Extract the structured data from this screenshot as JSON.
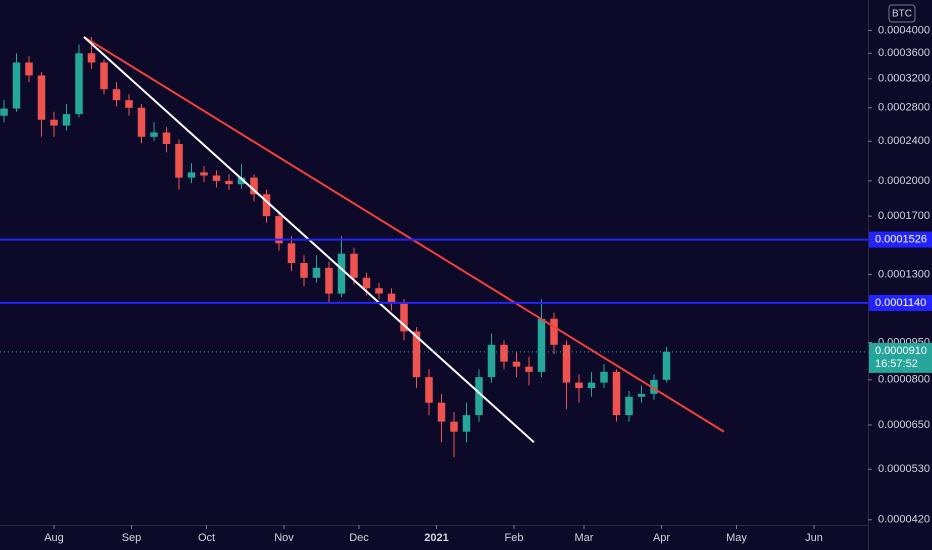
{
  "chart_data": {
    "type": "candlestick",
    "currency": "BTC",
    "log": true,
    "up_color": "#26a69a",
    "down_color": "#ef5350",
    "xlim": [
      -21.6,
      324.4
    ],
    "xticks": [
      {
        "value": 0,
        "label": "Aug"
      },
      {
        "value": 31,
        "label": "Sep"
      },
      {
        "value": 61,
        "label": "Oct"
      },
      {
        "value": 92,
        "label": "Nov"
      },
      {
        "value": 122,
        "label": "Dec"
      },
      {
        "value": 153,
        "label": "2021"
      },
      {
        "value": 184,
        "label": "Feb"
      },
      {
        "value": 212,
        "label": "Mar"
      },
      {
        "value": 243,
        "label": "Apr"
      },
      {
        "value": 273,
        "label": "May"
      },
      {
        "value": 304,
        "label": "Jun"
      }
    ],
    "ylim": [
      4.1e-05,
      0.00046
    ],
    "yticks": [
      {
        "value": 0.0004,
        "label": "0.0004000"
      },
      {
        "value": 0.00036,
        "label": "0.0003600"
      },
      {
        "value": 0.00032,
        "label": "0.0003200"
      },
      {
        "value": 0.00028,
        "label": "0.0002800"
      },
      {
        "value": 0.00024,
        "label": "0.0002400"
      },
      {
        "value": 0.0002,
        "label": "0.0002000"
      },
      {
        "value": 0.00017,
        "label": "0.0001700"
      },
      {
        "value": 0.00013,
        "label": "0.0001300"
      },
      {
        "value": 9.5e-05,
        "label": "0.0000950"
      },
      {
        "value": 8e-05,
        "label": "0.0000800"
      },
      {
        "value": 6.5e-05,
        "label": "0.0000650"
      },
      {
        "value": 5.3e-05,
        "label": "0.0000530"
      },
      {
        "value": 4.2e-05,
        "label": "0.0000420"
      }
    ],
    "x": [
      -20,
      -15,
      -10,
      -5,
      0,
      5,
      10,
      15,
      20,
      25,
      30,
      35,
      40,
      45,
      50,
      55,
      60,
      65,
      70,
      75,
      80,
      85,
      90,
      95,
      100,
      105,
      110,
      115,
      120,
      125,
      130,
      135,
      140,
      145,
      150,
      155,
      160,
      165,
      170,
      175,
      180,
      185,
      190,
      195,
      200,
      205,
      210,
      215,
      220,
      225,
      230,
      235,
      240,
      245
    ],
    "open": [
      0.00027,
      0.000279,
      0.000345,
      0.000325,
      0.000265,
      0.000258,
      0.000272,
      0.00036,
      0.000345,
      0.000305,
      0.00029,
      0.00028,
      0.000245,
      0.00025,
      0.000237,
      0.000203,
      0.000208,
      0.000205,
      0.0002,
      0.000197,
      0.000203,
      0.000188,
      0.00017,
      0.00015,
      0.000137,
      0.000128,
      0.000134,
      0.000119,
      0.000143,
      0.000128,
      0.000122,
      0.000119,
      0.000114,
      0.0001,
      8.1e-05,
      7.2e-05,
      6.6e-05,
      6.3e-05,
      6.8e-05,
      8.1e-05,
      9.4e-05,
      8.7e-05,
      8.5e-05,
      8.3e-05,
      0.000106,
      9.4e-05,
      7.9e-05,
      7.7e-05,
      7.9e-05,
      8.3e-05,
      6.8e-05,
      7.4e-05,
      7.5e-05,
      8e-05
    ],
    "high": [
      0.00029,
      0.00036,
      0.000355,
      0.00033,
      0.000275,
      0.000285,
      0.000375,
      0.000388,
      0.00035,
      0.000315,
      0.000298,
      0.000285,
      0.000262,
      0.000256,
      0.000242,
      0.000217,
      0.000214,
      0.00021,
      0.000206,
      0.000216,
      0.000206,
      0.000192,
      0.000174,
      0.000155,
      0.000142,
      0.000142,
      0.000138,
      0.000155,
      0.000147,
      0.000131,
      0.000125,
      0.000122,
      0.000116,
      0.000102,
      8.4e-05,
      7.5e-05,
      6.9e-05,
      7.2e-05,
      8.4e-05,
      9.9e-05,
      9.6e-05,
      9.1e-05,
      8.9e-05,
      0.000116,
      0.000109,
      9.6e-05,
      8.2e-05,
      8.3e-05,
      8.6e-05,
      8.4e-05,
      7.6e-05,
      7.8e-05,
      8.2e-05,
      9.3e-05
    ],
    "low": [
      0.000262,
      0.000275,
      0.000315,
      0.000245,
      0.000245,
      0.000252,
      0.000268,
      0.000335,
      0.000298,
      0.000282,
      0.00027,
      0.000238,
      0.00024,
      0.000228,
      0.000192,
      0.000198,
      0.000199,
      0.000194,
      0.000192,
      0.000193,
      0.000182,
      0.000165,
      0.000145,
      0.000132,
      0.000123,
      0.000125,
      0.000114,
      0.000117,
      0.000124,
      0.000118,
      0.000116,
      0.00011,
      9.6e-05,
      7.7e-05,
      6.8e-05,
      6e-05,
      5.6e-05,
      6e-05,
      6.6e-05,
      7.9e-05,
      8.4e-05,
      8.1e-05,
      7.8e-05,
      8.1e-05,
      9e-05,
      7e-05,
      7.2e-05,
      7.4e-05,
      7.7e-05,
      6.6e-05,
      6.6e-05,
      7.2e-05,
      7.3e-05,
      7.9e-05
    ],
    "close": [
      0.000279,
      0.000345,
      0.000325,
      0.000265,
      0.000258,
      0.000272,
      0.00036,
      0.000345,
      0.000305,
      0.00029,
      0.00028,
      0.000245,
      0.00025,
      0.000237,
      0.000203,
      0.000208,
      0.000205,
      0.0002,
      0.000197,
      0.000203,
      0.000188,
      0.00017,
      0.00015,
      0.000137,
      0.000128,
      0.000134,
      0.000119,
      0.000143,
      0.000128,
      0.000122,
      0.000119,
      0.000114,
      0.0001,
      8.1e-05,
      7.2e-05,
      6.6e-05,
      6.3e-05,
      6.8e-05,
      8.1e-05,
      9.4e-05,
      8.7e-05,
      8.5e-05,
      8.3e-05,
      0.000106,
      9.4e-05,
      7.9e-05,
      7.7e-05,
      7.9e-05,
      8.3e-05,
      6.8e-05,
      7.4e-05,
      7.5e-05,
      8e-05,
      9.1e-05
    ],
    "levels": [
      {
        "value": 0.0001526,
        "label": "0.0001526",
        "color": "#2323ff"
      },
      {
        "value": 0.000114,
        "label": "0.0001140",
        "color": "#2323ff"
      }
    ],
    "trendlines": [
      {
        "color": "#f23f3a",
        "x": [
          12,
          268
        ],
        "y": [
          0.000388,
          6.3e-05
        ]
      },
      {
        "color": "#ffffff",
        "x": [
          12,
          192
        ],
        "y": [
          0.000388,
          6e-05
        ]
      }
    ],
    "last_price": {
      "value": 9.1e-05,
      "label": "0.0000910",
      "countdown": "16:57:52",
      "color": "#26a69a"
    }
  }
}
